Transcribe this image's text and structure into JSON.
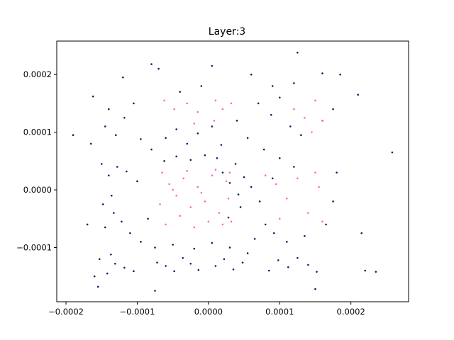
{
  "chart_data": {
    "type": "scatter",
    "title": "Layer:3",
    "xlabel": "",
    "ylabel": "",
    "xlim": [
      -0.000213,
      0.000281
    ],
    "ylim": [
      -0.000194,
      0.000258
    ],
    "grid": false,
    "legend": "none",
    "x_ticks": [
      {
        "value": -0.0002,
        "label": "−0.0002"
      },
      {
        "value": -0.0001,
        "label": "−0.0001"
      },
      {
        "value": 0.0,
        "label": "0.0000"
      },
      {
        "value": 0.0001,
        "label": "0.0001"
      },
      {
        "value": 0.0002,
        "label": "0.0002"
      }
    ],
    "y_ticks": [
      {
        "value": -0.0001,
        "label": "−0.0001"
      },
      {
        "value": 0.0,
        "label": "0.0000"
      },
      {
        "value": 0.0001,
        "label": "0.0001"
      },
      {
        "value": 0.0002,
        "label": "0.0002"
      }
    ],
    "series": [
      {
        "color": "#191970",
        "values": [
          {
            "x": -0.000142,
            "y": -0.000145
          },
          {
            "x": -0.000131,
            "y": -0.000128
          },
          {
            "x": -0.000118,
            "y": -0.000135
          },
          {
            "x": -0.000105,
            "y": -0.000141
          },
          {
            "x": -0.000153,
            "y": -0.00012
          },
          {
            "x": -0.000137,
            "y": -0.000112
          },
          {
            "x": -6e-05,
            "y": -0.000132
          },
          {
            "x": -4.8e-05,
            "y": -0.000141
          },
          {
            "x": -3.6e-05,
            "y": -0.000118
          },
          {
            "x": -2.5e-05,
            "y": -0.000128
          },
          {
            "x": -1.4e-05,
            "y": -0.000139
          },
          {
            "x": -7.2e-05,
            "y": -0.000126
          },
          {
            "x": 1e-05,
            "y": -0.000132
          },
          {
            "x": 2.2e-05,
            "y": -0.00012
          },
          {
            "x": 3.5e-05,
            "y": -0.000138
          },
          {
            "x": 4.8e-05,
            "y": -0.000126
          },
          {
            "x": 8.5e-05,
            "y": -0.00014
          },
          {
            "x": 9.8e-05,
            "y": -0.000122
          },
          {
            "x": 0.000112,
            "y": -0.000134
          },
          {
            "x": 0.000125,
            "y": -0.000118
          },
          {
            "x": 0.00014,
            "y": -0.00013
          },
          {
            "x": 0.000152,
            "y": -0.000142
          },
          {
            "x": -0.000145,
            "y": -6.5e-05
          },
          {
            "x": -0.000133,
            "y": -4e-05
          },
          {
            "x": -0.000122,
            "y": -5.5e-05
          },
          {
            "x": -0.000148,
            "y": -2.5e-05
          },
          {
            "x": -0.000136,
            "y": -1e-05
          },
          {
            "x": -0.00011,
            "y": -7.5e-05
          },
          {
            "x": -9.5e-05,
            "y": -9e-05
          },
          {
            "x": -8.5e-05,
            "y": -5e-05
          },
          {
            "x": -0.00014,
            "y": 2.5e-05
          },
          {
            "x": -0.000128,
            "y": 4e-05
          },
          {
            "x": -0.000115,
            "y": 3.2e-05
          },
          {
            "x": -0.00015,
            "y": 4.5e-05
          },
          {
            "x": -0.0001,
            "y": 1.5e-05
          },
          {
            "x": -0.000145,
            "y": 0.00011
          },
          {
            "x": -0.00013,
            "y": 9.5e-05
          },
          {
            "x": -0.000118,
            "y": 0.000125
          },
          {
            "x": -0.00014,
            "y": 0.00014
          },
          {
            "x": -0.000105,
            "y": 0.00015
          },
          {
            "x": -9.5e-05,
            "y": 8.8e-05
          },
          {
            "x": -8e-05,
            "y": 7e-05
          },
          {
            "x": -6e-05,
            "y": 9e-05
          },
          {
            "x": -4.5e-05,
            "y": 0.000105
          },
          {
            "x": -3e-05,
            "y": 8e-05
          },
          {
            "x": -1.5e-05,
            "y": 9.8e-05
          },
          {
            "x": 5e-06,
            "y": 0.00011
          },
          {
            "x": 1.8e-05,
            "y": 7.8e-05
          },
          {
            "x": 4e-05,
            "y": 0.00012
          },
          {
            "x": 5.5e-05,
            "y": 9e-05
          },
          {
            "x": 7e-05,
            "y": 0.00015
          },
          {
            "x": 8.8e-05,
            "y": 0.00013
          },
          {
            "x": 0.0001,
            "y": 0.00016
          },
          {
            "x": 0.000115,
            "y": 0.00011
          },
          {
            "x": 0.00013,
            "y": 9.5e-05
          },
          {
            "x": 0.00016,
            "y": 0.00012
          },
          {
            "x": 0.000175,
            "y": 0.00014
          },
          {
            "x": 9e-05,
            "y": 0.00018
          },
          {
            "x": 6e-05,
            "y": 0.0002
          },
          {
            "x": -1e-05,
            "y": 0.00018
          },
          {
            "x": -7e-05,
            "y": 0.00021
          },
          {
            "x": -0.00012,
            "y": 0.000195
          },
          {
            "x": 2e-05,
            "y": 3e-05
          },
          {
            "x": 3e-05,
            "y": 1.2e-05
          },
          {
            "x": 4.2e-05,
            "y": -8e-06
          },
          {
            "x": 3.8e-05,
            "y": 4.5e-05
          },
          {
            "x": 5e-05,
            "y": 2.2e-05
          },
          {
            "x": 4.5e-05,
            "y": -3e-05
          },
          {
            "x": 2.8e-05,
            "y": -4.8e-05
          },
          {
            "x": 1.2e-05,
            "y": 5.5e-05
          },
          {
            "x": -5e-06,
            "y": 6e-05
          },
          {
            "x": -2.5e-05,
            "y": 5.2e-05
          },
          {
            "x": -4.5e-05,
            "y": 5.8e-05
          },
          {
            "x": -6.2e-05,
            "y": 5e-05
          },
          {
            "x": 6e-05,
            "y": 5e-06
          },
          {
            "x": 7.2e-05,
            "y": -2e-05
          },
          {
            "x": 8e-05,
            "y": -6e-05
          },
          {
            "x": 6.5e-05,
            "y": -8.5e-05
          },
          {
            "x": 9.2e-05,
            "y": -7.5e-05
          },
          {
            "x": 0.00011,
            "y": -9e-05
          },
          {
            "x": 0.000135,
            "y": -8e-05
          },
          {
            "x": 0.000165,
            "y": -6e-05
          },
          {
            "x": 0.000175,
            "y": -2e-05
          },
          {
            "x": 0.00018,
            "y": 3e-05
          },
          {
            "x": 0.0001,
            "y": 5.5e-05
          },
          {
            "x": 0.00012,
            "y": 4e-05
          },
          {
            "x": 9e-05,
            "y": 2e-05
          },
          {
            "x": 7.8e-05,
            "y": 7e-05
          },
          {
            "x": -7.5e-05,
            "y": -0.0001
          },
          {
            "x": -5e-05,
            "y": -9.5e-05
          },
          {
            "x": -2e-05,
            "y": -0.000102
          },
          {
            "x": 5e-06,
            "y": -9.2e-05
          },
          {
            "x": 3e-05,
            "y": -0.0001
          },
          {
            "x": 5.5e-05,
            "y": -0.00011
          },
          {
            "x": -0.000165,
            "y": 8e-05
          },
          {
            "x": -0.00017,
            "y": -6e-05
          },
          {
            "x": -0.00016,
            "y": -0.00015
          },
          {
            "x": -0.00019,
            "y": 9.5e-05
          },
          {
            "x": 0.000258,
            "y": 6.5e-05
          },
          {
            "x": 0.000185,
            "y": 0.0002
          },
          {
            "x": 0.00021,
            "y": 0.000165
          },
          {
            "x": 0.000215,
            "y": -7.5e-05
          },
          {
            "x": 0.00022,
            "y": -0.00014
          },
          {
            "x": 0.000235,
            "y": -0.000142
          },
          {
            "x": 0.00012,
            "y": 0.000185
          },
          {
            "x": 0.00016,
            "y": 0.000202
          },
          {
            "x": 0.000125,
            "y": 0.000238
          },
          {
            "x": -8e-05,
            "y": 0.000218
          },
          {
            "x": -0.000162,
            "y": 0.000162
          },
          {
            "x": -0.000155,
            "y": -0.000168
          },
          {
            "x": -7.5e-05,
            "y": -0.000175
          },
          {
            "x": 0.00015,
            "y": -0.000172
          },
          {
            "x": 5e-06,
            "y": 0.000215
          },
          {
            "x": -4e-05,
            "y": 0.00017
          }
        ]
      },
      {
        "color": "#ff69b4",
        "values": [
          {
            "x": -6.5e-05,
            "y": 3e-05
          },
          {
            "x": -5.5e-05,
            "y": 1e-05
          },
          {
            "x": -4.5e-05,
            "y": -1e-05
          },
          {
            "x": -3.5e-05,
            "y": 2e-05
          },
          {
            "x": -2.5e-05,
            "y": -3e-05
          },
          {
            "x": -1.5e-05,
            "y": 5e-06
          },
          {
            "x": -5e-06,
            "y": -2e-05
          },
          {
            "x": 5e-06,
            "y": 2.5e-05
          },
          {
            "x": 1.5e-05,
            "y": -4e-05
          },
          {
            "x": 2.5e-05,
            "y": 1.5e-05
          },
          {
            "x": 3.2e-05,
            "y": -5.5e-05
          },
          {
            "x": -6e-05,
            "y": -6e-05
          },
          {
            "x": -4e-05,
            "y": -4.5e-05
          },
          {
            "x": -2e-05,
            "y": -6.5e-05
          },
          {
            "x": 0.0,
            "y": -5.5e-05
          },
          {
            "x": 2e-05,
            "y": -6e-05
          },
          {
            "x": -6.8e-05,
            "y": -2.5e-05
          },
          {
            "x": -3e-05,
            "y": 3.3e-05
          },
          {
            "x": 1e-05,
            "y": 3.5e-05
          },
          {
            "x": 3e-05,
            "y": 3e-05
          },
          {
            "x": -5e-05,
            "y": 0.0
          },
          {
            "x": -1e-05,
            "y": -5e-06
          },
          {
            "x": 2.8e-05,
            "y": -1.5e-05
          },
          {
            "x": -6.2e-05,
            "y": 0.000155
          },
          {
            "x": -4.8e-05,
            "y": 0.00014
          },
          {
            "x": -3e-05,
            "y": 0.00015
          },
          {
            "x": -1.5e-05,
            "y": 0.000135
          },
          {
            "x": 1e-05,
            "y": 0.000155
          },
          {
            "x": 2e-05,
            "y": 0.00014
          },
          {
            "x": 3.2e-05,
            "y": 0.00015
          },
          {
            "x": -2e-05,
            "y": 0.000115
          },
          {
            "x": 8e-06,
            "y": 0.00012
          },
          {
            "x": 8e-05,
            "y": 2.5e-05
          },
          {
            "x": 9.5e-05,
            "y": 1e-05
          },
          {
            "x": 0.00011,
            "y": -1.5e-05
          },
          {
            "x": 0.000125,
            "y": 2e-05
          },
          {
            "x": 0.00014,
            "y": -4e-05
          },
          {
            "x": 0.00015,
            "y": 3e-05
          },
          {
            "x": 0.00016,
            "y": -5.5e-05
          },
          {
            "x": 0.000155,
            "y": 5e-06
          },
          {
            "x": 0.0001,
            "y": -5e-05
          },
          {
            "x": 0.00012,
            "y": 0.00014
          },
          {
            "x": 0.000135,
            "y": 0.000125
          },
          {
            "x": 0.00015,
            "y": 0.000155
          },
          {
            "x": 0.00016,
            "y": 0.00012
          },
          {
            "x": 0.000145,
            "y": 0.0001
          }
        ]
      }
    ]
  }
}
